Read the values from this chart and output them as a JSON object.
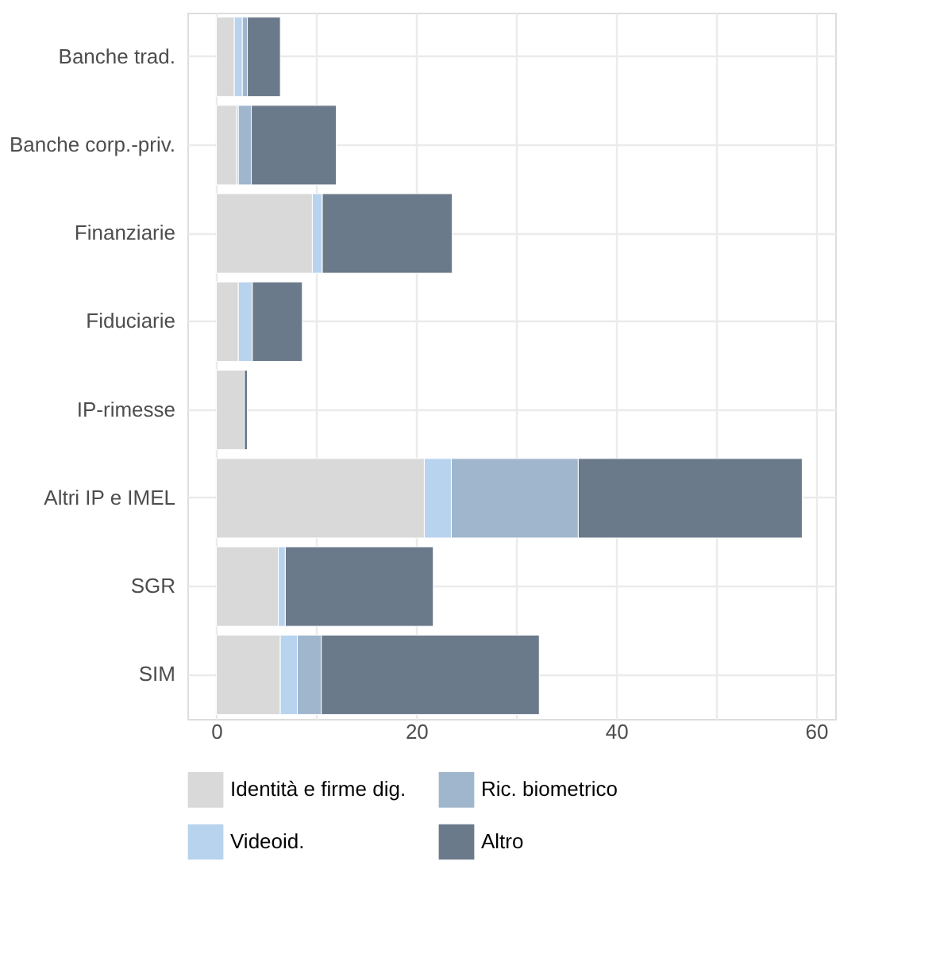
{
  "chart_data": {
    "type": "bar",
    "orientation": "horizontal",
    "stacked": true,
    "categories": [
      "Banche trad.",
      "Banche corp.-priv.",
      "Finanziarie",
      "Fiduciarie",
      "IP-rimesse",
      "Altri IP e IMEL",
      "SGR",
      "SIM"
    ],
    "series": [
      {
        "name": "Identità e firme dig.",
        "color": "#d9d9d9",
        "values": [
          1.8,
          2.0,
          9.6,
          2.2,
          2.8,
          20.8,
          6.2,
          6.4
        ]
      },
      {
        "name": "Videoid.",
        "color": "#b8d3ee",
        "values": [
          0.8,
          0.2,
          1.0,
          1.4,
          0,
          2.7,
          0.7,
          1.7
        ]
      },
      {
        "name": "Ric. biometrico",
        "color": "#a0b6cc",
        "values": [
          0.5,
          1.3,
          0,
          0,
          0,
          12.7,
          0,
          2.4
        ]
      },
      {
        "name": "Altro",
        "color": "#6b7a8a",
        "values": [
          3.3,
          8.5,
          13.0,
          5.0,
          0.3,
          22.4,
          14.8,
          21.8
        ]
      }
    ],
    "xlim": [
      -2.9,
      61.9
    ],
    "xticks": [
      0,
      {
        "value": 10,
        "label": null
      },
      20,
      {
        "value": 30,
        "label": null
      },
      40,
      {
        "value": 50,
        "label": null
      },
      60
    ],
    "grid": true,
    "legend": "bottom"
  }
}
